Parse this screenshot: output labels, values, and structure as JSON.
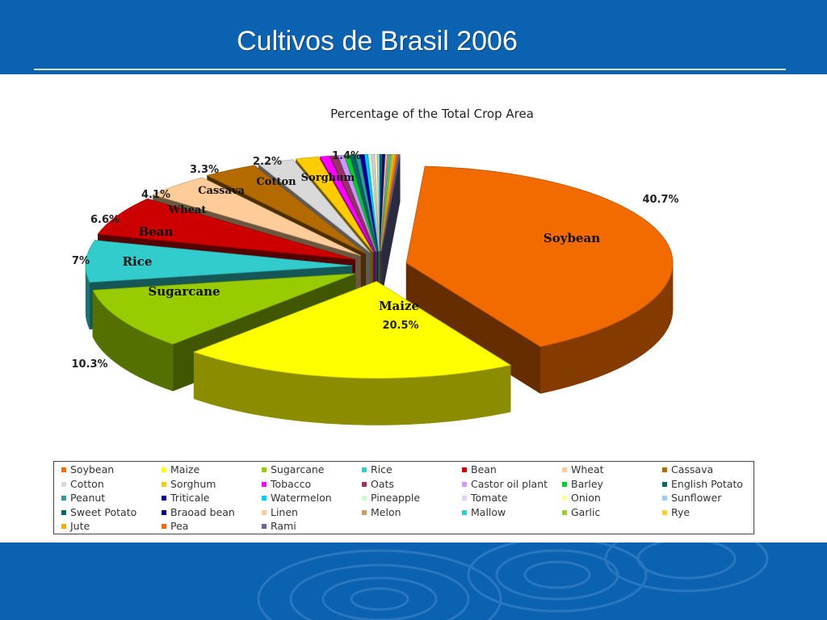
{
  "slide": {
    "title": "Cultivos de Brasil 2006"
  },
  "chart_data": {
    "type": "pie",
    "title": "Percentage of the Total Crop Area",
    "slices": [
      {
        "name": "Soybean",
        "value": 40.7,
        "label": "40.7%",
        "inside_label": "Soybean",
        "color": "#f26b00"
      },
      {
        "name": "Maize",
        "value": 20.5,
        "label": "20.5%",
        "inside_label": "Maize",
        "color": "#ffff00"
      },
      {
        "name": "Sugarcane",
        "value": 10.3,
        "label": "10.3%",
        "inside_label": "Sugarcane",
        "color": "#99cc00"
      },
      {
        "name": "Rice",
        "value": 7,
        "label": "7%",
        "inside_label": "Rice",
        "color": "#33cccc"
      },
      {
        "name": "Bean",
        "value": 6.6,
        "label": "6.6%",
        "inside_label": "Bean",
        "color": "#cc0000"
      },
      {
        "name": "Wheat",
        "value": 4.1,
        "label": "4.1%",
        "inside_label": "Wheat",
        "color": "#ffcc99"
      },
      {
        "name": "Cassava",
        "value": 3.3,
        "label": "3.3%",
        "inside_label": "Cassava",
        "color": "#b36b00"
      },
      {
        "name": "Cotton",
        "value": 2.2,
        "label": "2.2%",
        "inside_label": "Cotton",
        "color": "#d9d9d9"
      },
      {
        "name": "Sorghum",
        "value": 1.4,
        "label": "1.4%",
        "inside_label": "Sorghum",
        "color": "#ffcc00"
      },
      {
        "name": "Tobacco",
        "value": 0.55,
        "color": "#ff00ff"
      },
      {
        "name": "Oats",
        "value": 0.45,
        "color": "#993366"
      },
      {
        "name": "Castor oil plant",
        "value": 0.35,
        "color": "#cc99ff"
      },
      {
        "name": "Barley",
        "value": 0.3,
        "color": "#00cc33"
      },
      {
        "name": "English Potato",
        "value": 0.3,
        "color": "#006666"
      },
      {
        "name": "Peanut",
        "value": 0.25,
        "color": "#339999"
      },
      {
        "name": "Triticale",
        "value": 0.25,
        "color": "#000099"
      },
      {
        "name": "Watermelon",
        "value": 0.2,
        "color": "#00ccff"
      },
      {
        "name": "Pineapple",
        "value": 0.2,
        "color": "#ccffcc"
      },
      {
        "name": "Tomate",
        "value": 0.15,
        "color": "#e6ccff"
      },
      {
        "name": "Onion",
        "value": 0.15,
        "color": "#ffff99"
      },
      {
        "name": "Sunflower",
        "value": 0.15,
        "color": "#99ccff"
      },
      {
        "name": "Sweet Potato",
        "value": 0.15,
        "color": "#006666"
      },
      {
        "name": "Braoad bean",
        "value": 0.15,
        "color": "#000080"
      },
      {
        "name": "Linen",
        "value": 0.1,
        "color": "#ffcc99"
      },
      {
        "name": "Melon",
        "value": 0.1,
        "color": "#cc9966"
      },
      {
        "name": "Mallow",
        "value": 0.1,
        "color": "#33cccc"
      },
      {
        "name": "Garlic",
        "value": 0.1,
        "color": "#99cc33"
      },
      {
        "name": "Rye",
        "value": 0.1,
        "color": "#ffcc33"
      },
      {
        "name": "Jute",
        "value": 0.1,
        "color": "#ffaa00"
      },
      {
        "name": "Pea",
        "value": 0.1,
        "color": "#ff6600"
      },
      {
        "name": "Rami",
        "value": 0.1,
        "color": "#666699"
      }
    ],
    "legend_placement": "bottom"
  }
}
